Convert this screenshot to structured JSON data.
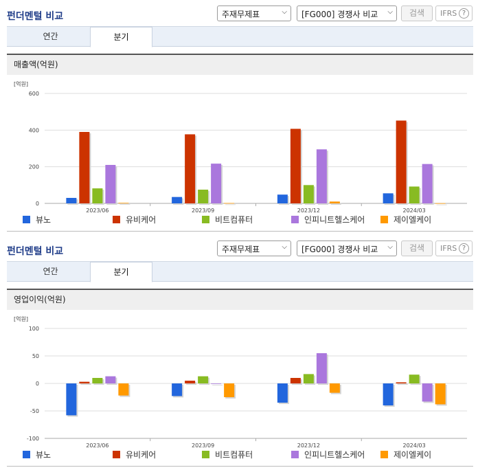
{
  "panels": [
    {
      "title": "펀더멘털 비교",
      "select1": "주재무제표",
      "select2": "[FG000] 경쟁사 비교",
      "search_label": "검색",
      "ifrs_label": "IFRS",
      "tabs": [
        "연간",
        "분기"
      ],
      "section_title": "매출액(억원)"
    },
    {
      "title": "펀더멘털 비교",
      "select1": "주재무제표",
      "select2": "[FG000] 경쟁사 비교",
      "search_label": "검색",
      "ifrs_label": "IFRS",
      "tabs": [
        "연간",
        "분기"
      ],
      "section_title": "영업이익(억원)"
    }
  ],
  "help_icon": "question-circle-icon",
  "dropdown_icon": "chevron-down-icon",
  "chart_data": [
    {
      "type": "bar",
      "unit_label": "[억원]",
      "categories": [
        "2023/06",
        "2023/09",
        "2023/12",
        "2024/03"
      ],
      "ylim": [
        0,
        600
      ],
      "yticks": [
        0,
        200,
        400,
        600
      ],
      "grid": true,
      "legend": "bottom",
      "series": [
        {
          "name": "뷰노",
          "color": "#2266dd",
          "values": [
            30,
            35,
            48,
            55
          ]
        },
        {
          "name": "유비케어",
          "color": "#cc3300",
          "values": [
            390,
            377,
            407,
            452
          ]
        },
        {
          "name": "비트컴퓨터",
          "color": "#88bb22",
          "values": [
            82,
            75,
            100,
            92
          ]
        },
        {
          "name": "인피니트헬스케어",
          "color": "#aa77dd",
          "values": [
            210,
            217,
            295,
            215
          ]
        },
        {
          "name": "제이엘케이",
          "color": "#ff9900",
          "values": [
            3,
            2,
            10,
            1
          ]
        }
      ]
    },
    {
      "type": "bar",
      "unit_label": "[억원]",
      "categories": [
        "2023/06",
        "2023/09",
        "2023/12",
        "2024/03"
      ],
      "ylim": [
        -100,
        100
      ],
      "yticks": [
        -100,
        -50,
        0,
        50,
        100
      ],
      "grid": true,
      "legend": "bottom",
      "series": [
        {
          "name": "뷰노",
          "color": "#2266dd",
          "values": [
            -58,
            -23,
            -35,
            -40
          ]
        },
        {
          "name": "유비케어",
          "color": "#cc3300",
          "values": [
            3,
            5,
            10,
            2
          ]
        },
        {
          "name": "비트컴퓨터",
          "color": "#88bb22",
          "values": [
            10,
            13,
            17,
            16
          ]
        },
        {
          "name": "인피니트헬스케어",
          "color": "#aa77dd",
          "values": [
            13,
            0,
            55,
            -33
          ]
        },
        {
          "name": "제이엘케이",
          "color": "#ff9900",
          "values": [
            -22,
            -25,
            -17,
            -38
          ]
        }
      ]
    }
  ]
}
